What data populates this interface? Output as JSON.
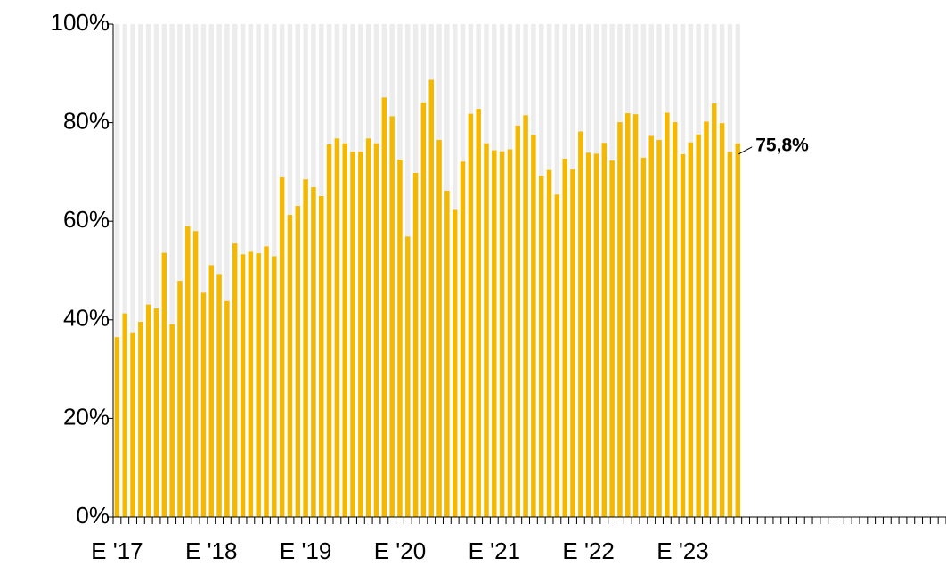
{
  "chart_data": {
    "type": "bar",
    "categories": [
      "E '17",
      null,
      null,
      null,
      null,
      null,
      null,
      null,
      null,
      null,
      null,
      null,
      "E '18",
      null,
      null,
      null,
      null,
      null,
      null,
      null,
      null,
      null,
      null,
      null,
      "E '19",
      null,
      null,
      null,
      null,
      null,
      null,
      null,
      null,
      null,
      null,
      null,
      "E '20",
      null,
      null,
      null,
      null,
      null,
      null,
      null,
      null,
      null,
      null,
      null,
      "E '21",
      null,
      null,
      null,
      null,
      null,
      null,
      null,
      null,
      null,
      null,
      null,
      "E '22",
      null,
      null,
      null,
      null,
      null,
      null,
      null,
      null,
      null,
      null,
      null,
      "E '23",
      null,
      null,
      null,
      null,
      null,
      null,
      null,
      null,
      null,
      null,
      null,
      null,
      null,
      null,
      null,
      null,
      null,
      null,
      null,
      null,
      null,
      null,
      null,
      null,
      null,
      null,
      null,
      null,
      null,
      null,
      null,
      null,
      null
    ],
    "values": [
      36.5,
      41.3,
      37.3,
      39.6,
      43.1,
      42.3,
      53.6,
      39.1,
      47.9,
      59.0,
      58.0,
      45.5,
      51.1,
      49.3,
      43.8,
      55.5,
      53.3,
      53.8,
      53.5,
      54.9,
      52.9,
      68.9,
      61.3,
      63.1,
      68.5,
      66.9,
      65.1,
      75.6,
      76.8,
      75.8,
      74.1,
      74.1,
      76.8,
      75.8,
      85.1,
      81.3,
      72.5,
      56.9,
      69.8,
      84.1,
      88.7,
      76.5,
      66.2,
      62.3,
      72.1,
      81.8,
      82.8,
      75.8,
      74.4,
      74.2,
      74.6,
      79.4,
      81.5,
      77.5,
      69.2,
      70.4,
      65.4,
      72.7,
      70.5,
      78.2,
      73.9,
      73.7,
      75.9,
      72.3,
      80.1,
      81.9,
      81.7,
      72.9,
      77.3,
      76.5,
      82.0,
      80.1,
      73.6,
      76.0,
      77.6,
      80.2,
      83.9,
      79.9,
      74.1,
      75.8,
      null,
      null,
      null,
      null,
      null,
      null,
      null,
      null,
      null,
      null,
      null,
      null,
      null,
      null,
      null,
      null,
      null,
      null,
      null,
      null,
      null,
      null,
      null,
      null,
      null,
      null
    ],
    "value_labels": [
      null,
      null,
      null,
      null,
      null,
      null,
      null,
      null,
      null,
      null,
      null,
      null,
      null,
      null,
      null,
      null,
      null,
      null,
      null,
      null,
      null,
      null,
      null,
      null,
      null,
      null,
      null,
      null,
      null,
      null,
      null,
      null,
      null,
      null,
      null,
      null,
      null,
      null,
      null,
      null,
      null,
      null,
      null,
      null,
      null,
      null,
      null,
      null,
      null,
      null,
      null,
      null,
      null,
      null,
      null,
      null,
      null,
      null,
      null,
      null,
      null,
      null,
      null,
      null,
      null,
      null,
      null,
      null,
      null,
      null,
      null,
      null,
      null,
      null,
      null,
      null,
      null,
      null,
      null,
      "75,8%",
      null,
      null,
      null,
      null,
      null,
      null,
      null,
      null,
      null,
      null,
      null,
      null,
      null,
      null,
      null,
      null,
      null,
      null,
      null,
      null,
      null,
      null,
      null,
      null,
      null,
      null
    ],
    "color": "#f5b800",
    "background_color": "#ececec",
    "ylim": [
      0,
      100
    ],
    "yticks": [
      {
        "value": 0,
        "label": "0%"
      },
      {
        "value": 20,
        "label": "20%"
      },
      {
        "value": 40,
        "label": "40%"
      },
      {
        "value": 60,
        "label": "60%"
      },
      {
        "value": 80,
        "label": "80%"
      },
      {
        "value": 100,
        "label": "100%"
      }
    ],
    "grid": false
  }
}
